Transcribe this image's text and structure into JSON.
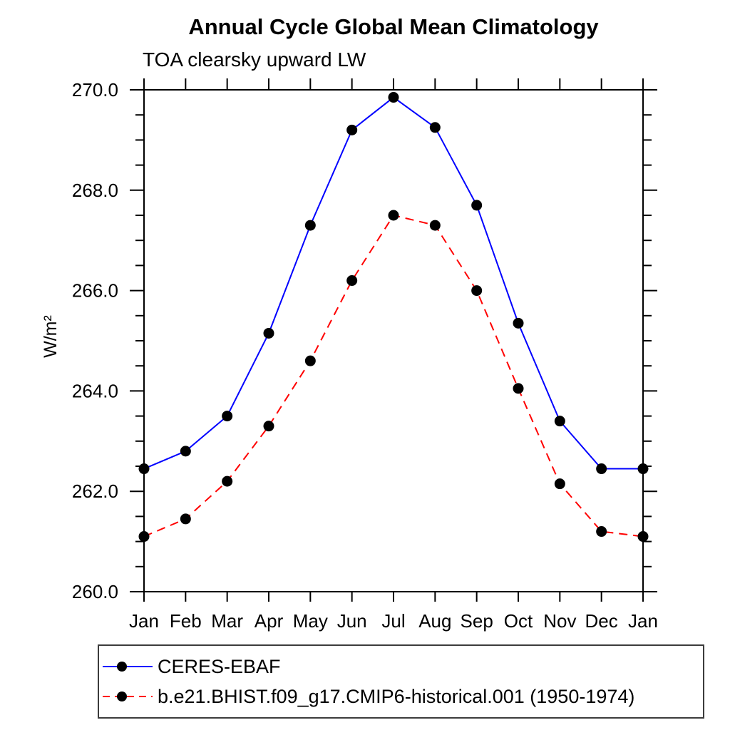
{
  "header": {
    "title": "Annual Cycle Global Mean Climatology",
    "subtitle": "TOA clearsky upward LW"
  },
  "chart_data": {
    "type": "line",
    "title": "Annual Cycle Global Mean Climatology",
    "subtitle": "TOA clearsky upward LW",
    "ylabel": "W/m²",
    "xlabel": "",
    "x_categories": [
      "Jan",
      "Feb",
      "Mar",
      "Apr",
      "May",
      "Jun",
      "Jul",
      "Aug",
      "Sep",
      "Oct",
      "Nov",
      "Dec",
      "Jan"
    ],
    "ylim": [
      260.0,
      270.0
    ],
    "ytick_major_values": [
      260,
      262,
      264,
      266,
      268,
      270
    ],
    "ytick_major_labels": [
      "260.0",
      "262.0",
      "264.0",
      "266.0",
      "268.0",
      "270.0"
    ],
    "ytick_minor_step": 0.5,
    "grid": "off",
    "legend_position": "bottom-left",
    "marker": {
      "shape": "filled-circle",
      "color": "#000000",
      "radius": 7.5
    },
    "series": [
      {
        "name": "CERES-EBAF",
        "color": "#0000ff",
        "line_style": "solid",
        "values": [
          262.45,
          262.8,
          263.5,
          265.15,
          267.3,
          269.2,
          269.85,
          269.25,
          267.7,
          265.35,
          263.4,
          262.45,
          262.45
        ]
      },
      {
        "name": "b.e21.BHIST.f09_g17.CMIP6-historical.001 (1950-1974)",
        "color": "#ff0000",
        "line_style": "dashed",
        "values": [
          261.1,
          261.45,
          262.2,
          263.3,
          264.6,
          266.2,
          267.5,
          267.3,
          266.0,
          264.05,
          262.15,
          261.2,
          261.1
        ]
      }
    ]
  }
}
